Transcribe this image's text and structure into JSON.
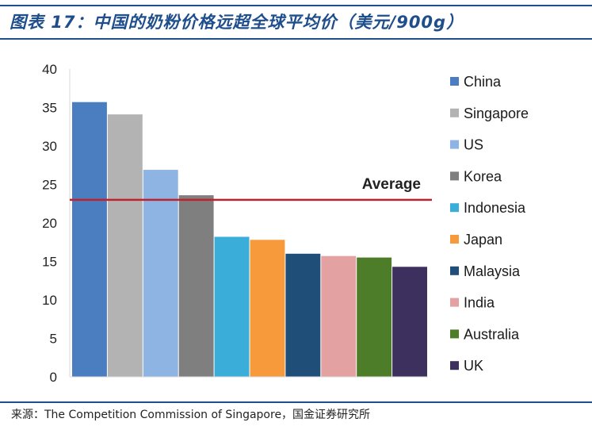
{
  "header": {
    "title": "图表 17：中国的奶粉价格远超全球平均价（美元/900g）"
  },
  "footer": {
    "source": "来源：The Competition Commission of Singapore，国金证券研究所"
  },
  "chart_data": {
    "type": "bar",
    "title": "中国的奶粉价格远超全球平均价（美元/900g）",
    "xlabel": "",
    "ylabel": "",
    "ylim": [
      0,
      40
    ],
    "yticks": [
      0,
      5,
      10,
      15,
      20,
      25,
      30,
      35,
      40
    ],
    "categories": [
      "China",
      "Singapore",
      "US",
      "Korea",
      "Indonesia",
      "Japan",
      "Malaysia",
      "India",
      "Australia",
      "UK"
    ],
    "values": [
      35.7,
      34.1,
      26.9,
      23.6,
      18.2,
      17.8,
      16.0,
      15.7,
      15.5,
      14.3
    ],
    "colors": [
      "#4a7ec0",
      "#b3b3b3",
      "#8db4e2",
      "#7f7f7f",
      "#3aaed8",
      "#f79a3c",
      "#1f4e79",
      "#e3a1a1",
      "#4e7d2a",
      "#3d2f5e"
    ],
    "average": {
      "label": "Average",
      "value": 23.0,
      "color": "#c0222d"
    },
    "legend_position": "right",
    "grid": false
  }
}
